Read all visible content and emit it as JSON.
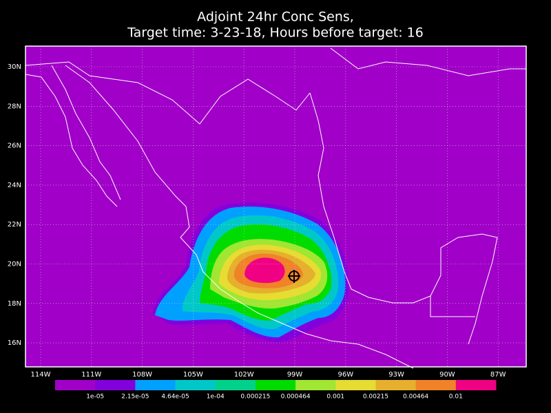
{
  "map": {
    "title": [
      "Adjoint 24hr Conc Sens,",
      "Target time: 3-23-18, Hours before target: 16"
    ],
    "lat_labels": [
      "30N",
      "28N",
      "26N",
      "24N",
      "22N",
      "20N",
      "18N",
      "16N"
    ],
    "lon_labels": [
      "114W",
      "111W",
      "108W",
      "105W",
      "102W",
      "99W",
      "96W",
      "93W",
      "90W",
      "87W"
    ],
    "colorbar": {
      "labels": [
        "1e-05",
        "2.15e-05",
        "4.64e-05",
        "1e-04",
        "0.000215",
        "0.000464",
        "0.001",
        "0.00215",
        "0.00464",
        "0.01"
      ],
      "colors": [
        "#a000c8",
        "#8200dc",
        "#00a0ff",
        "#00c8c8",
        "#00d28c",
        "#00dc00",
        "#a0e632",
        "#e6dc32",
        "#e6af2d",
        "#f08228",
        "#f00082"
      ]
    }
  }
}
